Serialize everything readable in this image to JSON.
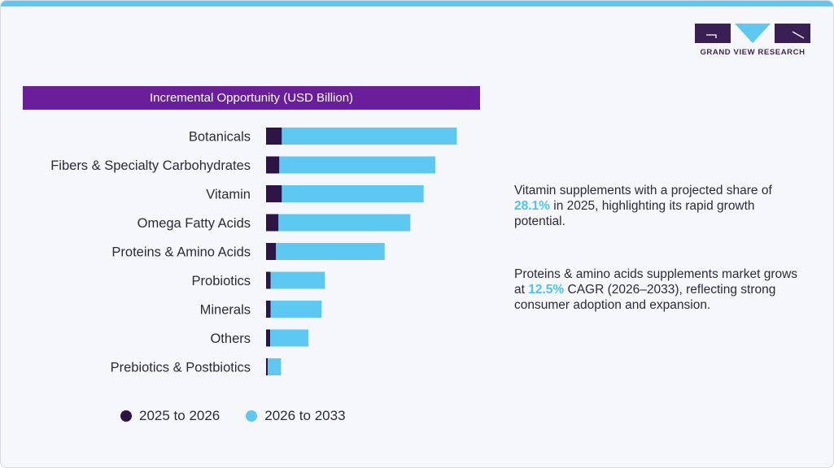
{
  "brand": {
    "name": "GRAND VIEW RESEARCH",
    "colors": {
      "purple": "#6a1f9a",
      "dark": "#3a1f55",
      "sky": "#5dc8f2"
    }
  },
  "notes": [
    {
      "before": "Vitamin supplements with a projected share of ",
      "highlight": "28.1%",
      "after": " in 2025, highlighting its rapid growth potential."
    },
    {
      "before": "Proteins & amino acids supplements market grows at ",
      "highlight": "12.5%",
      "after": " CAGR (2026–2033), reflecting strong consumer adoption and expansion."
    }
  ],
  "chart_data": {
    "type": "bar",
    "orientation": "horizontal",
    "stacked": true,
    "title": "Incremental Opportunity (USD Billion)",
    "categories": [
      "Botanicals",
      "Fibers & Specialty Carbohydrates",
      "Vitamin",
      "Omega Fatty Acids",
      "Proteins & Amino Acids",
      "Probiotics",
      "Minerals",
      "Others",
      "Prebiotics & Postbiotics"
    ],
    "series": [
      {
        "name": "2025 to 2026",
        "color": "#2e1345",
        "values": [
          1.9,
          1.6,
          1.9,
          1.5,
          1.2,
          0.55,
          0.55,
          0.5,
          0.2
        ]
      },
      {
        "name": "2026 to 2033",
        "color": "#5dc8f2",
        "values": [
          21.1,
          18.8,
          17.1,
          15.9,
          13.1,
          6.55,
          6.15,
          4.6,
          1.6
        ]
      }
    ],
    "xlim": [
      0,
      26
    ],
    "grid": false,
    "legend_position": "bottom-left"
  }
}
